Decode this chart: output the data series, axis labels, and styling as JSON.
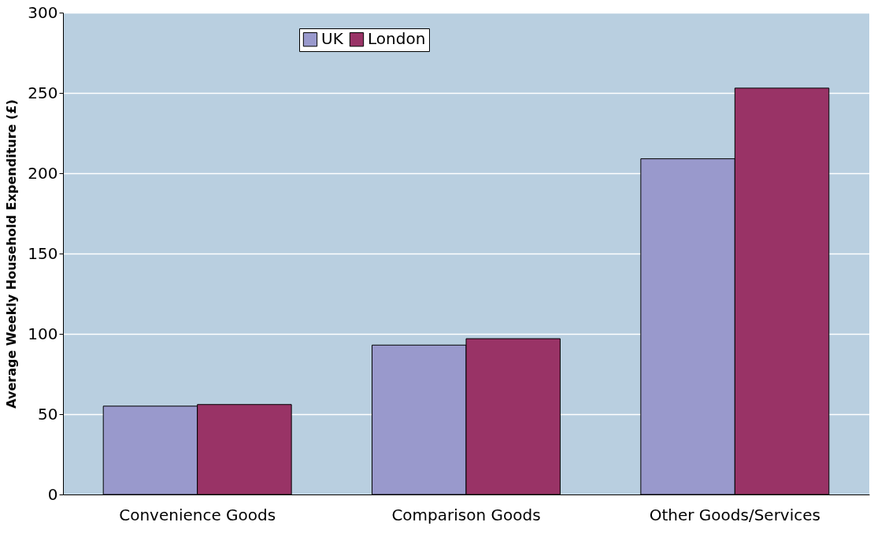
{
  "chart_data": {
    "type": "bar",
    "ylabel": "Average Weekly Household Expenditure (£)",
    "categories": [
      "Convenience Goods",
      "Comparison Goods",
      "Other Goods/Services"
    ],
    "series": [
      {
        "name": "UK",
        "color": "#9999cc",
        "values": [
          55,
          93,
          209
        ]
      },
      {
        "name": "London",
        "color": "#993366",
        "values": [
          56,
          97,
          253
        ]
      }
    ],
    "ylim": [
      0,
      300
    ],
    "yticks": [
      0,
      50,
      100,
      150,
      200,
      250,
      300
    ],
    "grid": "y",
    "legend": "top"
  }
}
